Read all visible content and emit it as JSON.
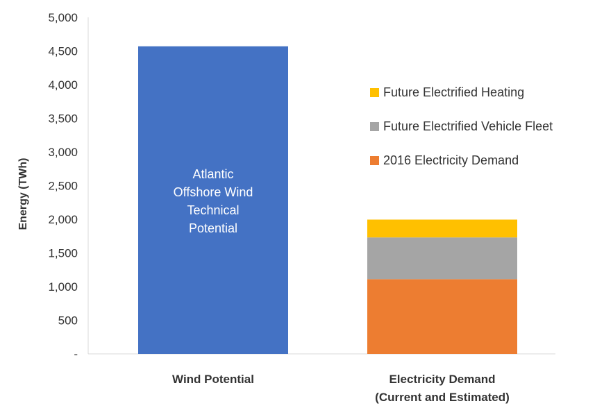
{
  "chart_data": {
    "type": "bar",
    "stacked": true,
    "categories": [
      [
        "Wind Potential"
      ],
      [
        "Electricity Demand",
        "(Current and Estimated)"
      ]
    ],
    "ylabel": "Energy (TWh)",
    "ylim": [
      0,
      5000
    ],
    "ytick_step": 500,
    "yticks": [
      "-",
      "500",
      "1,000",
      "1,500",
      "2,000",
      "2,500",
      "3,000",
      "3,500",
      "4,000",
      "4,500",
      "5,000"
    ],
    "grid": false,
    "legend_position": "right",
    "series": [
      {
        "name": "Atlantic Offshore Wind Technical Potential",
        "values": [
          4570,
          null
        ],
        "color": "#4472C4",
        "in_legend": false,
        "inside_label": [
          "Atlantic",
          "Offshore Wind",
          "Technical",
          "Potential"
        ]
      },
      {
        "name": "2016 Electricity Demand",
        "values": [
          null,
          1110
        ],
        "color": "#ED7D31",
        "in_legend": true
      },
      {
        "name": "Future Electrified Vehicle Fleet",
        "values": [
          null,
          620
        ],
        "color": "#A5A5A5",
        "in_legend": true
      },
      {
        "name": "Future Electrified Heating",
        "values": [
          null,
          265
        ],
        "color": "#FFC000",
        "in_legend": true
      }
    ],
    "legend_order": [
      "Future Electrified Heating",
      "Future Electrified Vehicle Fleet",
      "2016 Electricity Demand"
    ]
  }
}
